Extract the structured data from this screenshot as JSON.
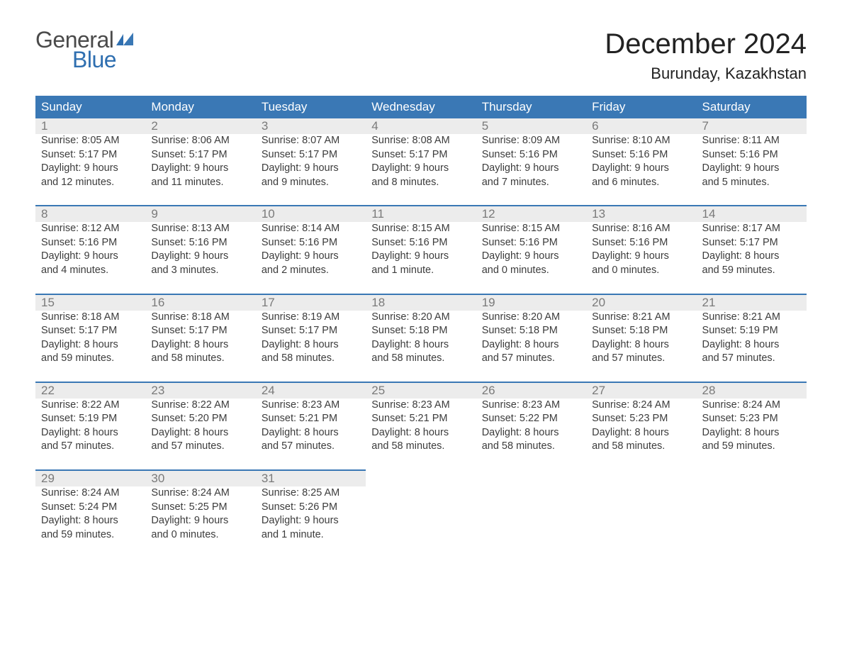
{
  "logo": {
    "word1": "General",
    "word2": "Blue",
    "text_color": "#4a4a4a",
    "accent_color": "#2f6fb0"
  },
  "title": "December 2024",
  "location": "Burunday, Kazakhstan",
  "colors": {
    "header_bg": "#3a78b5",
    "header_text": "#ffffff",
    "daynum_bg": "#ececec",
    "daynum_text": "#7a7a7a",
    "body_text": "#3c3c3c",
    "background": "#ffffff",
    "row_border": "#3a78b5"
  },
  "typography": {
    "title_fontsize": 40,
    "location_fontsize": 22,
    "dayheader_fontsize": 17,
    "daynum_fontsize": 17,
    "cell_fontsize": 14.5,
    "font_family": "Arial"
  },
  "day_headers": [
    "Sunday",
    "Monday",
    "Tuesday",
    "Wednesday",
    "Thursday",
    "Friday",
    "Saturday"
  ],
  "weeks": [
    [
      {
        "n": "1",
        "sr": "Sunrise: 8:05 AM",
        "ss": "Sunset: 5:17 PM",
        "d1": "Daylight: 9 hours",
        "d2": "and 12 minutes."
      },
      {
        "n": "2",
        "sr": "Sunrise: 8:06 AM",
        "ss": "Sunset: 5:17 PM",
        "d1": "Daylight: 9 hours",
        "d2": "and 11 minutes."
      },
      {
        "n": "3",
        "sr": "Sunrise: 8:07 AM",
        "ss": "Sunset: 5:17 PM",
        "d1": "Daylight: 9 hours",
        "d2": "and 9 minutes."
      },
      {
        "n": "4",
        "sr": "Sunrise: 8:08 AM",
        "ss": "Sunset: 5:17 PM",
        "d1": "Daylight: 9 hours",
        "d2": "and 8 minutes."
      },
      {
        "n": "5",
        "sr": "Sunrise: 8:09 AM",
        "ss": "Sunset: 5:16 PM",
        "d1": "Daylight: 9 hours",
        "d2": "and 7 minutes."
      },
      {
        "n": "6",
        "sr": "Sunrise: 8:10 AM",
        "ss": "Sunset: 5:16 PM",
        "d1": "Daylight: 9 hours",
        "d2": "and 6 minutes."
      },
      {
        "n": "7",
        "sr": "Sunrise: 8:11 AM",
        "ss": "Sunset: 5:16 PM",
        "d1": "Daylight: 9 hours",
        "d2": "and 5 minutes."
      }
    ],
    [
      {
        "n": "8",
        "sr": "Sunrise: 8:12 AM",
        "ss": "Sunset: 5:16 PM",
        "d1": "Daylight: 9 hours",
        "d2": "and 4 minutes."
      },
      {
        "n": "9",
        "sr": "Sunrise: 8:13 AM",
        "ss": "Sunset: 5:16 PM",
        "d1": "Daylight: 9 hours",
        "d2": "and 3 minutes."
      },
      {
        "n": "10",
        "sr": "Sunrise: 8:14 AM",
        "ss": "Sunset: 5:16 PM",
        "d1": "Daylight: 9 hours",
        "d2": "and 2 minutes."
      },
      {
        "n": "11",
        "sr": "Sunrise: 8:15 AM",
        "ss": "Sunset: 5:16 PM",
        "d1": "Daylight: 9 hours",
        "d2": "and 1 minute."
      },
      {
        "n": "12",
        "sr": "Sunrise: 8:15 AM",
        "ss": "Sunset: 5:16 PM",
        "d1": "Daylight: 9 hours",
        "d2": "and 0 minutes."
      },
      {
        "n": "13",
        "sr": "Sunrise: 8:16 AM",
        "ss": "Sunset: 5:16 PM",
        "d1": "Daylight: 9 hours",
        "d2": "and 0 minutes."
      },
      {
        "n": "14",
        "sr": "Sunrise: 8:17 AM",
        "ss": "Sunset: 5:17 PM",
        "d1": "Daylight: 8 hours",
        "d2": "and 59 minutes."
      }
    ],
    [
      {
        "n": "15",
        "sr": "Sunrise: 8:18 AM",
        "ss": "Sunset: 5:17 PM",
        "d1": "Daylight: 8 hours",
        "d2": "and 59 minutes."
      },
      {
        "n": "16",
        "sr": "Sunrise: 8:18 AM",
        "ss": "Sunset: 5:17 PM",
        "d1": "Daylight: 8 hours",
        "d2": "and 58 minutes."
      },
      {
        "n": "17",
        "sr": "Sunrise: 8:19 AM",
        "ss": "Sunset: 5:17 PM",
        "d1": "Daylight: 8 hours",
        "d2": "and 58 minutes."
      },
      {
        "n": "18",
        "sr": "Sunrise: 8:20 AM",
        "ss": "Sunset: 5:18 PM",
        "d1": "Daylight: 8 hours",
        "d2": "and 58 minutes."
      },
      {
        "n": "19",
        "sr": "Sunrise: 8:20 AM",
        "ss": "Sunset: 5:18 PM",
        "d1": "Daylight: 8 hours",
        "d2": "and 57 minutes."
      },
      {
        "n": "20",
        "sr": "Sunrise: 8:21 AM",
        "ss": "Sunset: 5:18 PM",
        "d1": "Daylight: 8 hours",
        "d2": "and 57 minutes."
      },
      {
        "n": "21",
        "sr": "Sunrise: 8:21 AM",
        "ss": "Sunset: 5:19 PM",
        "d1": "Daylight: 8 hours",
        "d2": "and 57 minutes."
      }
    ],
    [
      {
        "n": "22",
        "sr": "Sunrise: 8:22 AM",
        "ss": "Sunset: 5:19 PM",
        "d1": "Daylight: 8 hours",
        "d2": "and 57 minutes."
      },
      {
        "n": "23",
        "sr": "Sunrise: 8:22 AM",
        "ss": "Sunset: 5:20 PM",
        "d1": "Daylight: 8 hours",
        "d2": "and 57 minutes."
      },
      {
        "n": "24",
        "sr": "Sunrise: 8:23 AM",
        "ss": "Sunset: 5:21 PM",
        "d1": "Daylight: 8 hours",
        "d2": "and 57 minutes."
      },
      {
        "n": "25",
        "sr": "Sunrise: 8:23 AM",
        "ss": "Sunset: 5:21 PM",
        "d1": "Daylight: 8 hours",
        "d2": "and 58 minutes."
      },
      {
        "n": "26",
        "sr": "Sunrise: 8:23 AM",
        "ss": "Sunset: 5:22 PM",
        "d1": "Daylight: 8 hours",
        "d2": "and 58 minutes."
      },
      {
        "n": "27",
        "sr": "Sunrise: 8:24 AM",
        "ss": "Sunset: 5:23 PM",
        "d1": "Daylight: 8 hours",
        "d2": "and 58 minutes."
      },
      {
        "n": "28",
        "sr": "Sunrise: 8:24 AM",
        "ss": "Sunset: 5:23 PM",
        "d1": "Daylight: 8 hours",
        "d2": "and 59 minutes."
      }
    ],
    [
      {
        "n": "29",
        "sr": "Sunrise: 8:24 AM",
        "ss": "Sunset: 5:24 PM",
        "d1": "Daylight: 8 hours",
        "d2": "and 59 minutes."
      },
      {
        "n": "30",
        "sr": "Sunrise: 8:24 AM",
        "ss": "Sunset: 5:25 PM",
        "d1": "Daylight: 9 hours",
        "d2": "and 0 minutes."
      },
      {
        "n": "31",
        "sr": "Sunrise: 8:25 AM",
        "ss": "Sunset: 5:26 PM",
        "d1": "Daylight: 9 hours",
        "d2": "and 1 minute."
      },
      null,
      null,
      null,
      null
    ]
  ]
}
